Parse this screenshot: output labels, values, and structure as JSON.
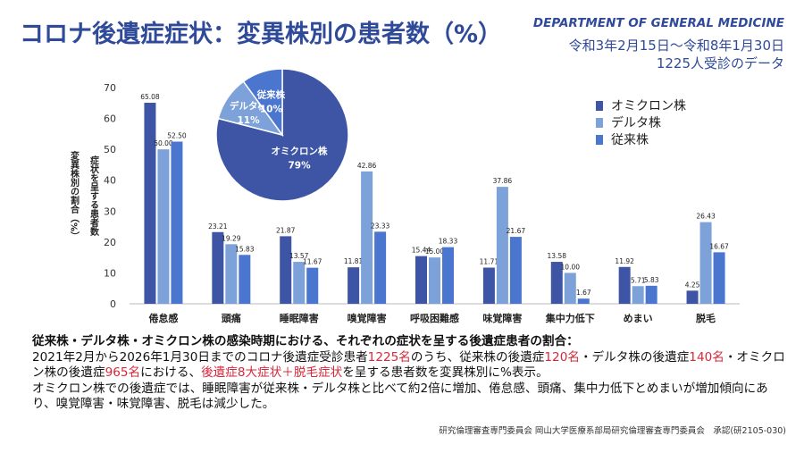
{
  "header": {
    "title": "コロナ後遺症症状：変異株別の患者数（%）",
    "department": "DEPARTMENT OF GENERAL MEDICINE",
    "period": "令和3年2月15日～令和8年1月30日",
    "count": "1225人受診のデータ"
  },
  "chart_data": {
    "type": "bar",
    "ylabel_outer": "変異株別の割合（%）",
    "ylabel_inner": "症状を呈する患者数",
    "ylim": [
      0,
      70
    ],
    "yticks": [
      0,
      10,
      20,
      30,
      40,
      50,
      60,
      70
    ],
    "categories": [
      "倦怠感",
      "頭痛",
      "睡眠障害",
      "嗅覚障害",
      "呼吸困難感",
      "味覚障害",
      "集中力低下",
      "めまい",
      "脱毛"
    ],
    "series": [
      {
        "name": "オミクロン株",
        "color": "#3d55a4",
        "values": [
          65.08,
          23.21,
          21.87,
          11.81,
          15.44,
          11.71,
          13.58,
          11.92,
          4.25
        ],
        "labels": [
          "65.08",
          "23.21",
          "21.87",
          "11.81",
          "15.44",
          "11.71",
          "13.58",
          "11.92",
          "4.25"
        ]
      },
      {
        "name": "デルタ株",
        "color": "#7da1d9",
        "values": [
          50.0,
          19.29,
          13.57,
          42.86,
          15.0,
          37.86,
          10.0,
          5.71,
          26.43
        ],
        "labels": [
          "50.00",
          "19.29",
          "13.57",
          "42.86",
          "15.00",
          "37.86",
          "10.00",
          "5.71",
          "26.43"
        ]
      },
      {
        "name": "従来株",
        "color": "#4a76d0",
        "values": [
          52.5,
          15.83,
          11.67,
          23.33,
          18.33,
          21.67,
          1.67,
          5.83,
          16.67
        ],
        "labels": [
          "52.50",
          "15.83",
          "11.67",
          "23.33",
          "18.33",
          "21.67",
          "1.67",
          "5.83",
          "16.67"
        ]
      }
    ],
    "pie": {
      "slices": [
        {
          "name": "オミクロン株",
          "value": 79,
          "label": "79%",
          "color": "#3d55a4"
        },
        {
          "name": "デルタ株",
          "value": 11,
          "label": "11%",
          "color": "#7da1d9"
        },
        {
          "name": "従来株",
          "value": 10,
          "label": "10%",
          "color": "#4a76d0"
        }
      ]
    }
  },
  "summary": {
    "heading": "従来株・デルタ株・オミクロン株の感染時期における、それぞれの症状を呈する後遺症患者の割合：",
    "p1": "2021年2月から2026年1月30日までのコロナ後遺症受診患者",
    "n_total": "1225名",
    "p2": "のうち、従来株の後遺症",
    "n_conv": "120名",
    "p3": "・デルタ株の後遺症",
    "n_delta": "140名",
    "p4": "・オミクロン株の後遺症",
    "n_omicron": "965名",
    "p5": "における、",
    "highlight": "後遺症8大症状＋脱毛症状",
    "p6": "を呈する患者数を変異株別に%表示。",
    "line2": "オミクロン株での後遺症では、睡眠障害が従来株・デルタ株と比べて約2倍に増加、倦怠感、頭痛、集中力低下とめまいが増加傾向にあり、嗅覚障害・味覚障害、脱毛は減少した。"
  },
  "footer": "研究倫理審査専門委員会 岡山大学医療系部局研究倫理審査専門委員会　承認(研2105-030)"
}
